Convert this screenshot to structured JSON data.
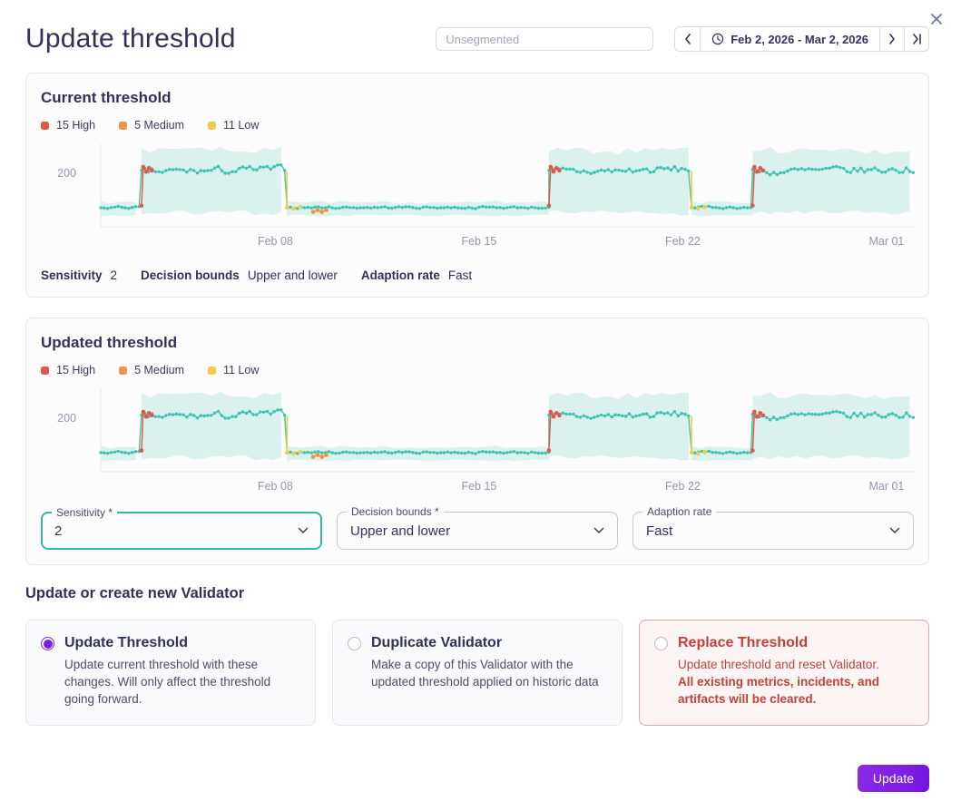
{
  "dialog": {
    "title": "Update threshold"
  },
  "header": {
    "segment_input": {
      "placeholder": "Unsegmented"
    },
    "date_nav": {
      "range": "Feb 2, 2026 - Mar 2, 2026"
    }
  },
  "legend": {
    "items": [
      {
        "label": "15 High",
        "color": "#e2574c"
      },
      {
        "label": "5 Medium",
        "color": "#ee934a"
      },
      {
        "label": "11 Low",
        "color": "#f2cb4e"
      }
    ]
  },
  "current": {
    "title": "Current threshold",
    "stats": [
      {
        "label": "Sensitivity",
        "value": "2"
      },
      {
        "label": "Decision bounds",
        "value": "Upper and lower"
      },
      {
        "label": "Adaption rate",
        "value": "Fast"
      }
    ]
  },
  "updated": {
    "title": "Updated threshold",
    "fields": [
      {
        "label": "Sensitivity *",
        "value": "2"
      },
      {
        "label": "Decision bounds *",
        "value": "Upper and lower"
      },
      {
        "label": "Adaption rate",
        "value": "Fast"
      }
    ]
  },
  "validator_section": {
    "title": "Update or create new Validator",
    "options": [
      {
        "title": "Update Threshold",
        "description": "Update current threshold with these changes. Will only affect the threshold going forward.",
        "selected": true
      },
      {
        "title": "Duplicate Validator",
        "description": "Make a copy of this Validator with the updated threshold applied on historic data",
        "selected": false
      },
      {
        "title": "Replace Threshold",
        "description": "Update threshold and reset Validator.",
        "description_bold": "All existing metrics, incidents, and artifacts will be cleared.",
        "selected": false
      }
    ]
  },
  "footer": {
    "update_label": "Update"
  },
  "chart_data": {
    "type": "line",
    "instances": [
      "Current threshold",
      "Updated threshold"
    ],
    "x_range": [
      "Feb 2, 2026",
      "Mar 2, 2026"
    ],
    "days_total": 28,
    "x_ticks": [
      "Feb 08",
      "Feb 15",
      "Feb 22",
      "Mar 01"
    ],
    "x_tick_days": [
      6,
      13,
      20,
      27
    ],
    "ytick_label": "200",
    "ytick_value": 200,
    "ylim": [
      20,
      300
    ],
    "grid": false,
    "legend_position": "top-left",
    "segments": [
      {
        "from": 0,
        "to": 1.4,
        "level": "low"
      },
      {
        "from": 1.4,
        "to": 6.4,
        "level": "high",
        "start_anomaly": "red"
      },
      {
        "from": 6.4,
        "to": 15.4,
        "level": "low",
        "start_anomaly": "yellow"
      },
      {
        "from": 15.4,
        "to": 20.3,
        "level": "high",
        "start_anomaly": "red"
      },
      {
        "from": 20.3,
        "to": 22.4,
        "level": "low",
        "start_anomaly": "yellow"
      },
      {
        "from": 22.4,
        "to": 28,
        "level": "high",
        "start_anomaly": "red"
      }
    ],
    "levels": {
      "high": {
        "mean": 203,
        "noise": 22,
        "band": [
          58,
          290
        ],
        "band_jitter": 28,
        "ramp": 10
      },
      "low": {
        "mean": 85,
        "noise": 6,
        "band": [
          55,
          108
        ],
        "band_jitter": 10,
        "ramp": 0
      }
    },
    "extra_anomalies": [
      {
        "day": 7.3,
        "color": "orange",
        "value": 70
      }
    ],
    "colors": {
      "line": "#3ec3b0",
      "band": "#daf1ed",
      "red": "#e2574c",
      "orange": "#ee934a",
      "yellow": "#f2cb4e",
      "axis": "#e8e9f1",
      "tick_text": "#9496ab"
    }
  }
}
